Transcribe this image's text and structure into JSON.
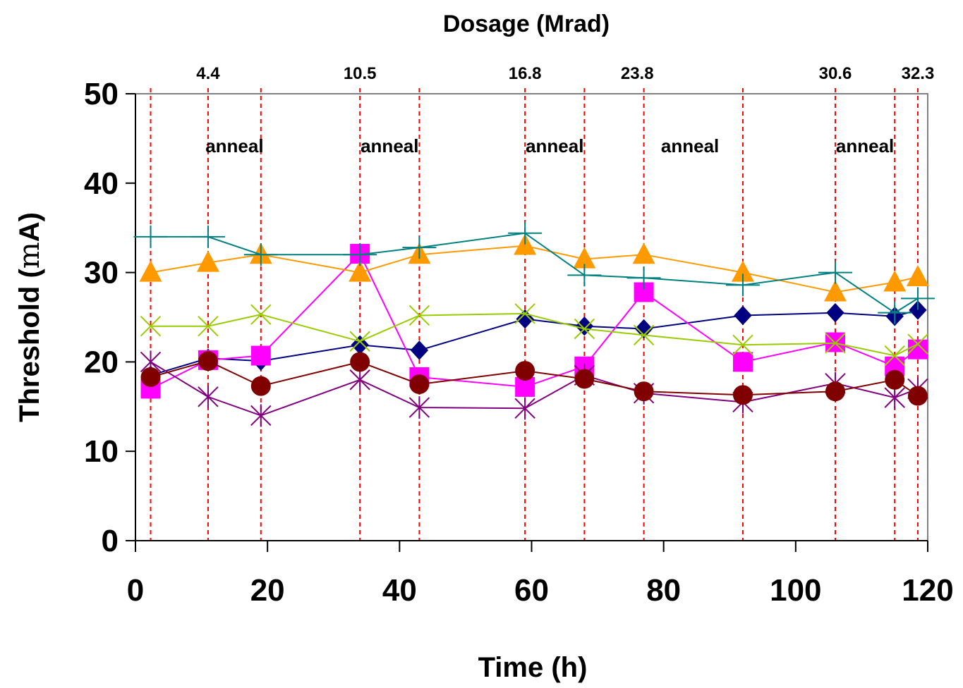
{
  "chart_data": {
    "type": "line",
    "xlabel": "Time (h)",
    "ylabel": "Threshold (mA)",
    "ylabel_prefix": "Threshold (",
    "ylabel_mu": "m",
    "ylabel_suffix": "A)",
    "top_axis_title": "Dosage (Mrad)",
    "xlim": [
      0,
      120
    ],
    "ylim": [
      0,
      50
    ],
    "xticks": [
      "0",
      "20",
      "40",
      "60",
      "80",
      "100",
      "120"
    ],
    "yticks": [
      "0",
      "10",
      "20",
      "30",
      "40",
      "50"
    ],
    "dosage_labels": [
      {
        "text": "4.4",
        "x": 11
      },
      {
        "text": "10.5",
        "x": 34
      },
      {
        "text": "16.8",
        "x": 59
      },
      {
        "text": "23.8",
        "x": 76
      },
      {
        "text": "30.6",
        "x": 106
      },
      {
        "text": "32.3",
        "x": 118.5
      }
    ],
    "anneal_label": "anneal",
    "anneal_ranges": [
      [
        11,
        19
      ],
      [
        34,
        43
      ],
      [
        59,
        68
      ],
      [
        76,
        92
      ],
      [
        106,
        115
      ]
    ],
    "dashed_lines": [
      2.3,
      11,
      19,
      34,
      43,
      59,
      68,
      77,
      92,
      106,
      115,
      118.5
    ],
    "series": [
      {
        "marker": "diamond",
        "color": "#000080",
        "x": [
          2.3,
          11,
          19,
          34,
          43,
          59,
          68,
          77,
          92,
          106,
          115,
          118.5
        ],
        "y": [
          18.5,
          20.4,
          20.1,
          21.9,
          21.3,
          24.8,
          24.0,
          23.7,
          25.2,
          25.5,
          25.1,
          25.8
        ]
      },
      {
        "marker": "square",
        "color": "#FF00FF",
        "x": [
          2.3,
          11,
          19,
          34,
          43,
          59,
          68,
          77,
          92,
          106,
          115,
          118.5
        ],
        "y": [
          17.0,
          20.2,
          20.7,
          32.1,
          18.3,
          17.2,
          19.5,
          27.8,
          20.0,
          22.2,
          19.5,
          21.4
        ]
      },
      {
        "marker": "triangle",
        "color": "#FF9900",
        "x": [
          2.3,
          11,
          19,
          34,
          43,
          59,
          68,
          77,
          92,
          106,
          115,
          118.5
        ],
        "y": [
          30.0,
          31.1,
          32.0,
          30.0,
          32.0,
          33.0,
          31.5,
          32.0,
          30.0,
          27.8,
          28.9,
          29.5
        ]
      },
      {
        "marker": "x",
        "color": "#99CC00",
        "x": [
          2.3,
          11,
          19,
          34,
          43,
          59,
          68,
          77,
          92,
          106,
          115,
          118.5
        ],
        "y": [
          24.0,
          24.0,
          25.3,
          22.3,
          25.2,
          25.4,
          23.7,
          23.0,
          21.9,
          22.1,
          20.7,
          22.0
        ]
      },
      {
        "marker": "star",
        "color": "#800080",
        "x": [
          2.3,
          11,
          19,
          34,
          43,
          59,
          68,
          77,
          92,
          106,
          115,
          118.5
        ],
        "y": [
          20.0,
          16.1,
          14.0,
          18.0,
          14.9,
          14.8,
          18.5,
          16.5,
          15.5,
          17.6,
          16.0,
          17.0
        ]
      },
      {
        "marker": "circle",
        "color": "#800000",
        "x": [
          2.3,
          11,
          19,
          34,
          43,
          59,
          68,
          77,
          92,
          106,
          115,
          118.5
        ],
        "y": [
          18.3,
          20.1,
          17.3,
          20.0,
          17.5,
          19.0,
          18.1,
          16.7,
          16.3,
          16.7,
          18.0,
          16.2
        ]
      },
      {
        "marker": "plus",
        "color": "#008080",
        "x": [
          2.3,
          11,
          19,
          34,
          43,
          59,
          68,
          77,
          92,
          106,
          115,
          118.5
        ],
        "y": [
          34.0,
          34.0,
          32.0,
          32.0,
          32.8,
          34.4,
          29.7,
          29.4,
          28.6,
          30.0,
          25.5,
          27.1
        ]
      }
    ],
    "grid": false,
    "legend": "none",
    "colors": {
      "dashed_line": "#FF0000",
      "plot_border": "#808080"
    }
  }
}
